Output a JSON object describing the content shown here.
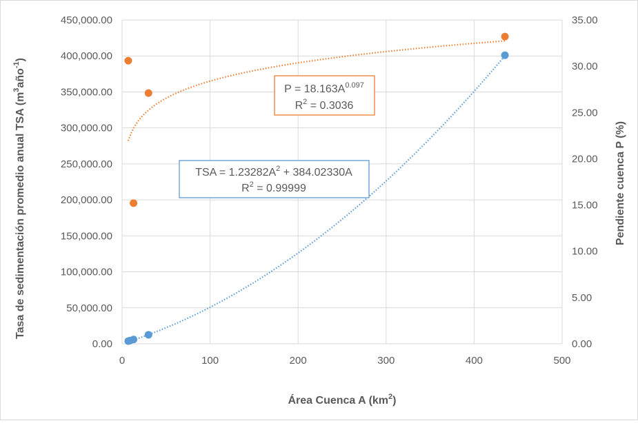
{
  "chart_data": {
    "type": "scatter",
    "xlabel": "Área Cuenca A (km",
    "xlabel_sup": "2",
    "xlabel_end": ")",
    "ylabel": "Tasa de sedimentación promedio anual TSA (m",
    "ylabel_sup1": "3",
    "ylabel_mid": "año",
    "ylabel_sup2": "-1",
    "ylabel_end": ")",
    "y2label": "Pendiente cuenca P (%)",
    "xlim": [
      0,
      500
    ],
    "ylim": [
      0,
      450000
    ],
    "y2lim": [
      0,
      35
    ],
    "x_ticks": [
      "0",
      "100",
      "200",
      "300",
      "400",
      "500"
    ],
    "y_ticks": [
      "0.00",
      "50,000.00",
      "100,000.00",
      "150,000.00",
      "200,000.00",
      "250,000.00",
      "300,000.00",
      "350,000.00",
      "400,000.00",
      "450,000.00"
    ],
    "y2_ticks": [
      "0.00",
      "5.00",
      "10.00",
      "15.00",
      "20.00",
      "25.00",
      "30.00",
      "35.00"
    ],
    "grid": true,
    "colors": {
      "tsa": "#5b9bd5",
      "slope": "#ed7d31",
      "grid": "#d9d9d9",
      "text": "#595959"
    },
    "series": [
      {
        "axis": "left",
        "color": "#5b9bd5",
        "x": [
          7,
          9,
          13,
          30,
          435
        ],
        "y": [
          3700,
          4400,
          6000,
          12500,
          401000
        ],
        "trendline": {
          "type": "poly2",
          "a": 1.23282,
          "b": 384.0233,
          "x_range": [
            7,
            435
          ]
        }
      },
      {
        "axis": "right",
        "color": "#ed7d31",
        "x": [
          7,
          13,
          30,
          435
        ],
        "y": [
          30.6,
          15.2,
          27.1,
          33.2
        ],
        "trendline": {
          "type": "power",
          "a": 18.163,
          "b": 0.097,
          "x_range": [
            7,
            435
          ]
        }
      }
    ],
    "annotations": {
      "slope_eq": {
        "prefix": "P = 18.163A",
        "exp": "0.097",
        "r2_prefix": "R",
        "r2_sup": "2",
        "r2_value": " = 0.3036"
      },
      "tsa_eq": {
        "prefix": "TSA = 1.23282A",
        "exp": "2",
        "suffix": " + 384.02330A",
        "r2_prefix": "R",
        "r2_sup": "2",
        "r2_value": " = 0.99999"
      }
    }
  }
}
